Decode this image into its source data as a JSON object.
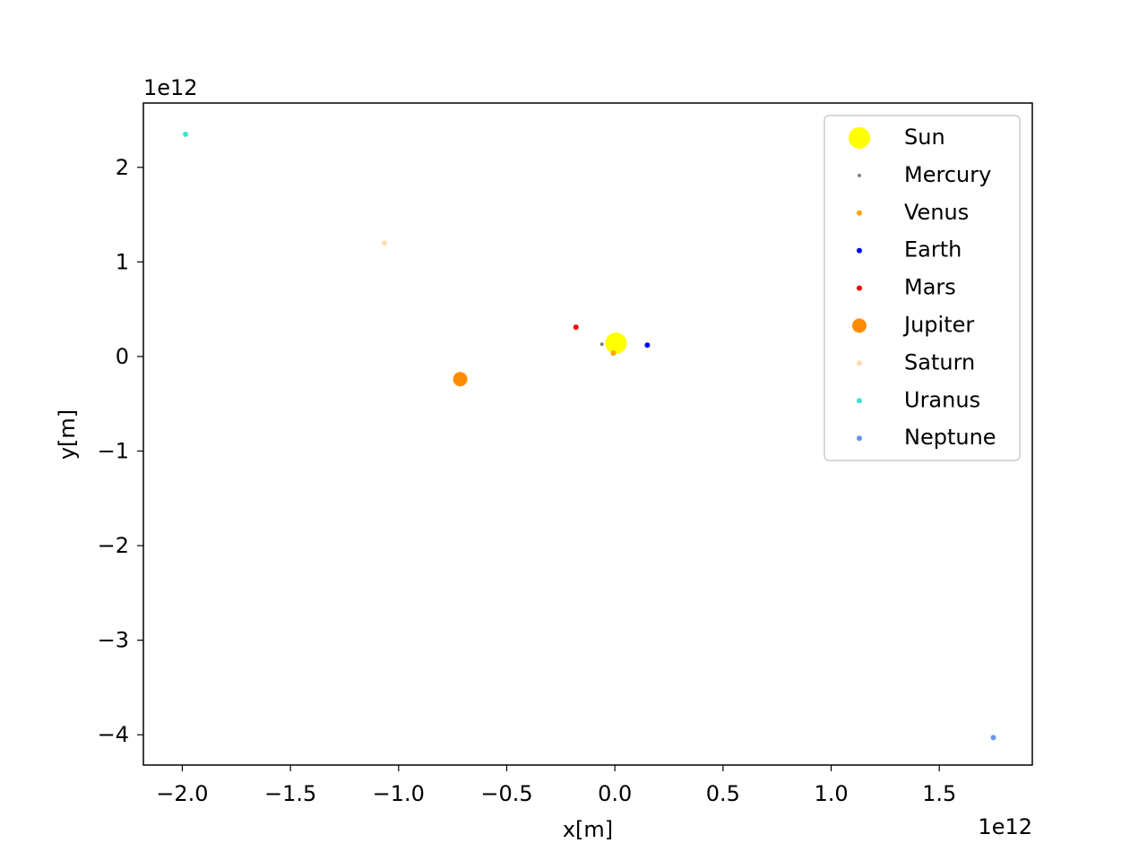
{
  "chart_data": {
    "type": "scatter",
    "title": "",
    "xlabel": "x[m]",
    "ylabel": "y[m]",
    "x_offset_label": "1e12",
    "y_offset_label": "1e12",
    "xlim": [
      -2.18,
      1.93
    ],
    "ylim": [
      -4.32,
      2.68
    ],
    "x_ticks": [
      -2.0,
      -1.5,
      -1.0,
      -0.5,
      0.0,
      0.5,
      1.0,
      1.5
    ],
    "x_tick_labels": [
      "−2.0",
      "−1.5",
      "−1.0",
      "−0.5",
      "0.0",
      "0.5",
      "1.0",
      "1.5"
    ],
    "y_ticks": [
      2,
      1,
      0,
      -1,
      -2,
      -3,
      -4
    ],
    "y_tick_labels": [
      "2",
      "1",
      "0",
      "−1",
      "−2",
      "−3",
      "−4"
    ],
    "grid": false,
    "legend_position": "top-right",
    "series": [
      {
        "name": "Sun",
        "color": "#ffff00",
        "size": 12,
        "x": [
          0.005
        ],
        "y": [
          0.14
        ]
      },
      {
        "name": "Mercury",
        "color": "#808080",
        "size": 2,
        "x": [
          -0.06
        ],
        "y": [
          0.13
        ]
      },
      {
        "name": "Venus",
        "color": "#ffa500",
        "size": 3,
        "x": [
          -0.007
        ],
        "y": [
          0.035
        ]
      },
      {
        "name": "Earth",
        "color": "#0000ff",
        "size": 3,
        "x": [
          0.15
        ],
        "y": [
          0.12
        ]
      },
      {
        "name": "Mars",
        "color": "#ff0000",
        "size": 3,
        "x": [
          -0.18
        ],
        "y": [
          0.31
        ]
      },
      {
        "name": "Jupiter",
        "color": "#ff8c00",
        "size": 8,
        "x": [
          -0.715
        ],
        "y": [
          -0.24
        ]
      },
      {
        "name": "Saturn",
        "color": "#ffdead",
        "size": 3,
        "x": [
          -1.065
        ],
        "y": [
          1.2
        ]
      },
      {
        "name": "Uranus",
        "color": "#40e0d0",
        "size": 3,
        "x": [
          -1.985
        ],
        "y": [
          2.35
        ]
      },
      {
        "name": "Neptune",
        "color": "#6495ed",
        "size": 3,
        "x": [
          1.75
        ],
        "y": [
          -4.03
        ]
      }
    ]
  }
}
